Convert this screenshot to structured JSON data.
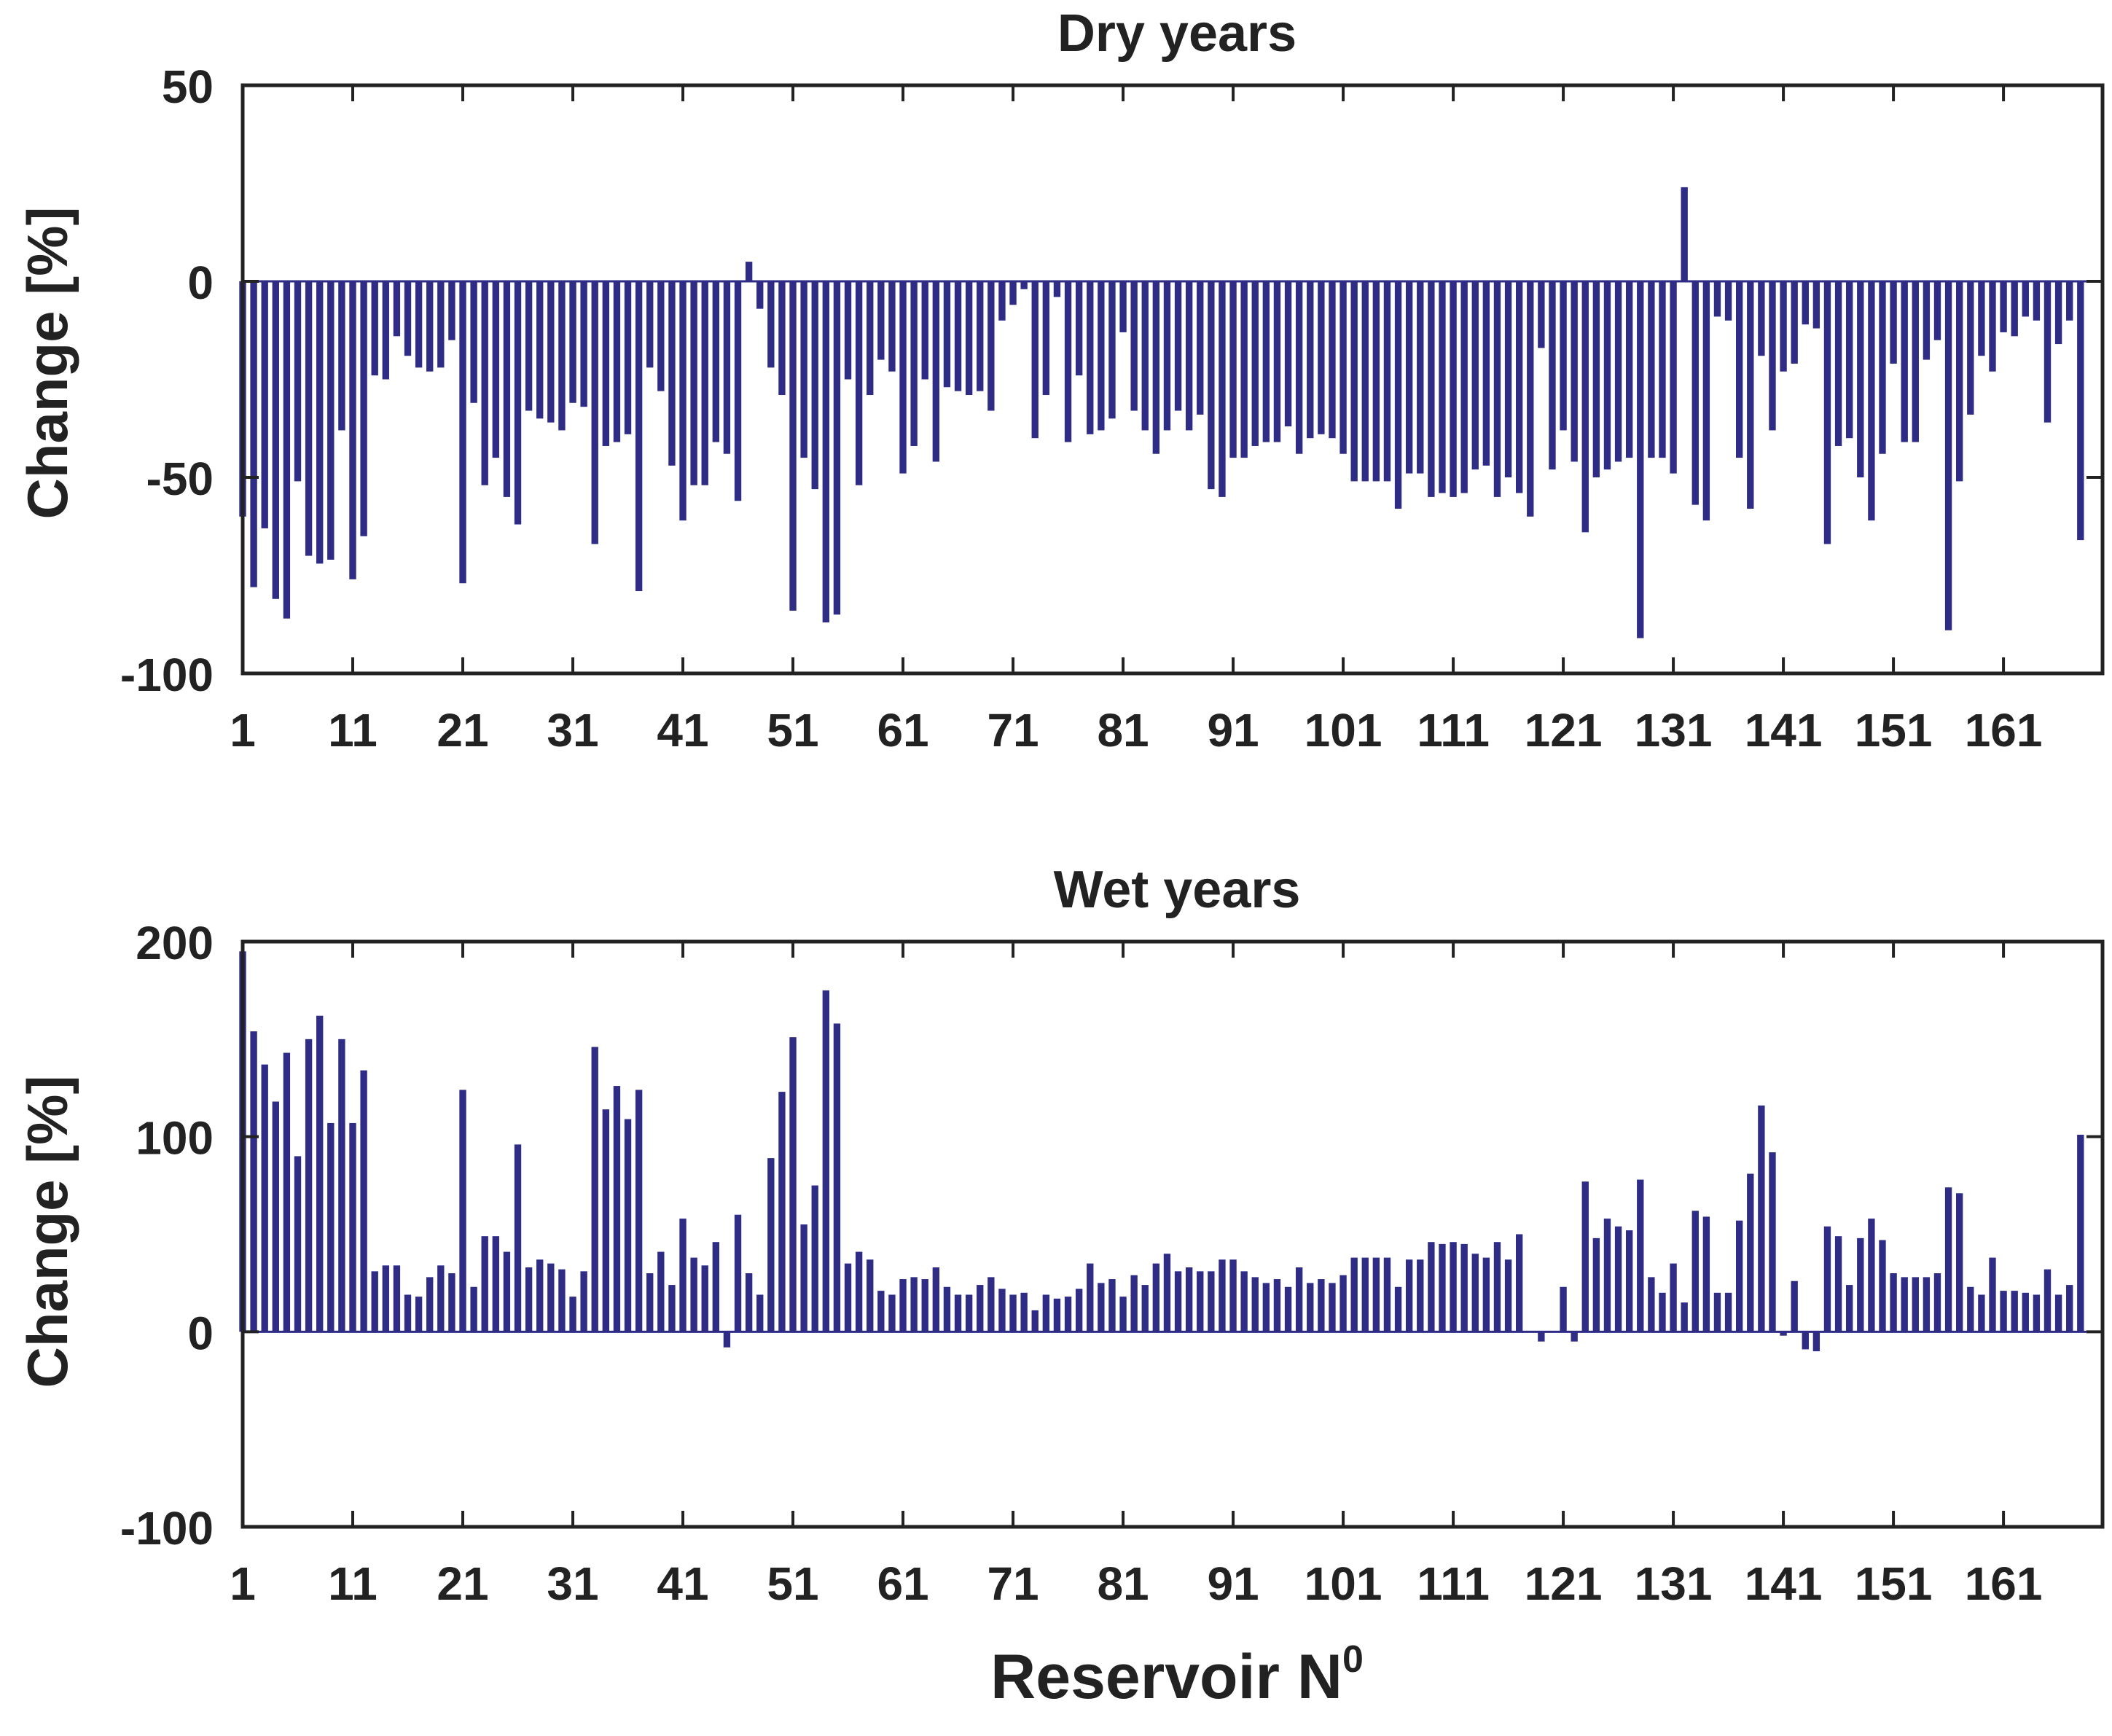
{
  "figure": {
    "xlabel": "Reservoir N",
    "xlabel_sup": "0",
    "bar_color": "#2e2c85"
  },
  "chart_data": [
    {
      "type": "bar",
      "title": "Dry years",
      "ylabel": "Change [%]",
      "xlabel": "Reservoir N0",
      "ylim": [
        -100,
        50
      ],
      "yticks": [
        50,
        0,
        -50,
        -100
      ],
      "xlim": [
        1,
        170
      ],
      "xticks": [
        1,
        11,
        21,
        31,
        41,
        51,
        61,
        71,
        81,
        91,
        101,
        111,
        121,
        131,
        141,
        151,
        161
      ],
      "x_start": 1,
      "values": [
        -60,
        -78,
        -63,
        -81,
        -86,
        -51,
        -70,
        -72,
        -71,
        -38,
        -76,
        -65,
        -24,
        -25,
        -14,
        -19,
        -22,
        -23,
        -22,
        -15,
        -77,
        -31,
        -52,
        -45,
        -55,
        -62,
        -33,
        -35,
        -36,
        -38,
        -31,
        -32,
        -67,
        -42,
        -41,
        -39,
        -79,
        -22,
        -28,
        -47,
        -61,
        -52,
        -52,
        -41,
        -44,
        -56,
        5,
        -7,
        -22,
        -29,
        -84,
        -45,
        -53,
        -87,
        -85,
        -25,
        -52,
        -29,
        -20,
        -23,
        -49,
        -42,
        -25,
        -46,
        -27,
        -28,
        -29,
        -28,
        -33,
        -10,
        -6,
        -2,
        -40,
        -29,
        -4,
        -41,
        -24,
        -39,
        -38,
        -35,
        -13,
        -33,
        -38,
        -44,
        -38,
        -33,
        -38,
        -34,
        -53,
        -55,
        -45,
        -45,
        -42,
        -41,
        -41,
        -37,
        -44,
        -40,
        -39,
        -40,
        -44,
        -51,
        -51,
        -51,
        -51,
        -58,
        -49,
        -49,
        -55,
        -54,
        -55,
        -54,
        -48,
        -47,
        -55,
        -50,
        -54,
        -60,
        -17,
        -48,
        -38,
        -46,
        -64,
        -50,
        -48,
        -46,
        -45,
        -91,
        -45,
        -45,
        -49,
        24,
        -57,
        -61,
        -9,
        -10,
        -45,
        -58,
        -19,
        -38,
        -23,
        -21,
        -11,
        -12,
        -67,
        -42,
        -40,
        -50,
        -61,
        -44,
        -21,
        -41,
        -41,
        -20,
        -15,
        -89,
        -51,
        -34,
        -19,
        -23,
        -13,
        -14,
        -9,
        -10,
        -36,
        -16,
        -10,
        -66
      ]
    },
    {
      "type": "bar",
      "title": "Wet years",
      "ylabel": "Change [%]",
      "xlabel": "Reservoir N0",
      "ylim": [
        -100,
        200
      ],
      "yticks": [
        200,
        100,
        0,
        -100
      ],
      "xlim": [
        1,
        170
      ],
      "xticks": [
        1,
        11,
        21,
        31,
        41,
        51,
        61,
        71,
        81,
        91,
        101,
        111,
        121,
        131,
        141,
        151,
        161
      ],
      "x_start": 1,
      "values": [
        195,
        154,
        137,
        118,
        143,
        90,
        150,
        162,
        107,
        150,
        107,
        134,
        31,
        34,
        34,
        19,
        18,
        28,
        34,
        30,
        124,
        23,
        49,
        49,
        41,
        96,
        33,
        37,
        35,
        32,
        18,
        31,
        146,
        114,
        126,
        109,
        124,
        30,
        41,
        24,
        58,
        38,
        34,
        46,
        -8,
        60,
        30,
        19,
        89,
        123,
        151,
        55,
        75,
        175,
        158,
        35,
        41,
        37,
        21,
        19,
        27,
        28,
        27,
        33,
        23,
        19,
        19,
        24,
        28,
        22,
        19,
        20,
        11,
        19,
        17,
        18,
        22,
        35,
        25,
        27,
        18,
        29,
        24,
        35,
        40,
        31,
        33,
        31,
        31,
        37,
        37,
        31,
        28,
        25,
        27,
        23,
        33,
        25,
        27,
        25,
        29,
        38,
        38,
        38,
        38,
        23,
        37,
        37,
        46,
        45,
        46,
        45,
        40,
        38,
        46,
        37,
        50,
        0,
        -5,
        0,
        23,
        -5,
        77,
        48,
        58,
        54,
        52,
        78,
        28,
        20,
        35,
        15,
        62,
        59,
        20,
        20,
        57,
        81,
        116,
        92,
        -2,
        26,
        -9,
        -10,
        54,
        49,
        24,
        48,
        58,
        47,
        30,
        28,
        28,
        28,
        30,
        74,
        71,
        23,
        19,
        38,
        21,
        21,
        20,
        19,
        32,
        19,
        24,
        101
      ]
    }
  ]
}
